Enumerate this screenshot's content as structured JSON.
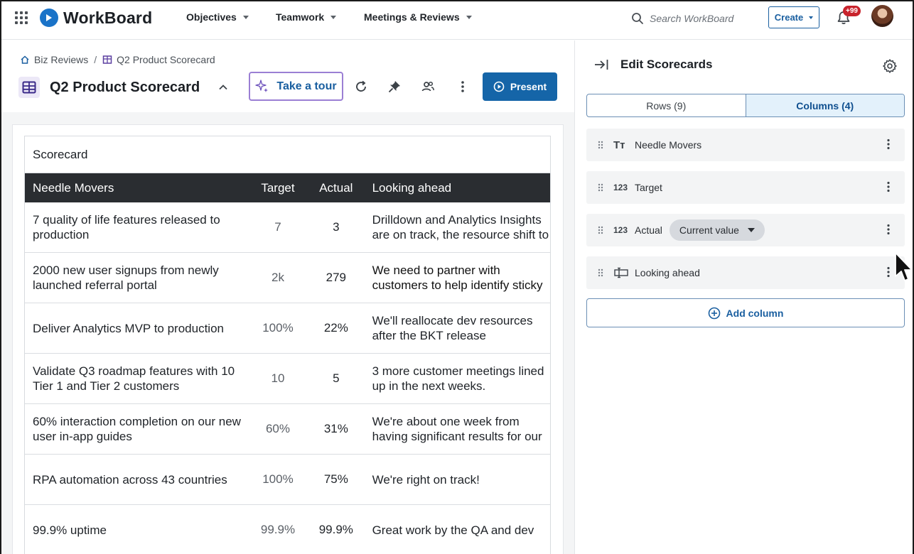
{
  "app": {
    "brand": "WorkBoard",
    "nav": [
      "Objectives",
      "Teamwork",
      "Meetings & Reviews"
    ],
    "search_placeholder": "Search WorkBoard",
    "create_label": "Create",
    "notification_count": "+99"
  },
  "breadcrumb": [
    "Biz Reviews",
    "Q2 Product Scorecard"
  ],
  "header": {
    "title": "Q2 Product Scorecard",
    "tour_label": "Take a tour",
    "present_label": "Present"
  },
  "scorecard": {
    "title": "Scorecard",
    "columns": [
      "Needle Movers",
      "Target",
      "Actual",
      "Looking ahead"
    ],
    "rows": [
      {
        "mover": "7 quality of life features released to production",
        "target": "7",
        "actual": "3",
        "ahead": "Drilldown and Analytics Insights are on track, the resource shift to BKT… ho"
      },
      {
        "mover": "2000 new user signups from newly launched referral portal",
        "target": "2k",
        "actual": "279",
        "ahead": "We need to partner with customers to help identify sticky points in the"
      },
      {
        "mover": "Deliver Analytics MVP to production",
        "target": "100%",
        "actual": "22%",
        "ahead": "We'll reallocate dev resources after the BKT release"
      },
      {
        "mover": "Validate Q3 roadmap features with 10 Tier 1 and Tier 2 customers",
        "target": "10",
        "actual": "5",
        "ahead": "3 more customer meetings lined up in the next weeks."
      },
      {
        "mover": "60% interaction completion on our new user in-app guides",
        "target": "60%",
        "actual": "31%",
        "ahead": "We're about one week from having significant results for our A/B"
      },
      {
        "mover": "RPA automation across 43 countries",
        "target": "100%",
        "actual": "75%",
        "ahead": "We're right on track!"
      },
      {
        "mover": "99.9% uptime",
        "target": "99.9%",
        "actual": "99.9%",
        "ahead": "Great work by the QA and dev"
      }
    ]
  },
  "panel": {
    "title": "Edit Scorecards",
    "tabs": [
      "Rows (9)",
      "Columns (4)"
    ],
    "columns": [
      {
        "type_icon": "text-type-icon",
        "type_label": "Tт",
        "name": "Needle Movers"
      },
      {
        "type_icon": "number-type-icon",
        "type_label": "123",
        "name": "Target"
      },
      {
        "type_icon": "number-type-icon",
        "type_label": "123",
        "name": "Actual",
        "option": "Current value"
      },
      {
        "type_icon": "long-text-type-icon",
        "type_label": "",
        "name": "Looking ahead"
      }
    ],
    "add_column_label": "Add column"
  },
  "colors": {
    "accent": "#1565a8",
    "tour_border": "#9b7fd4",
    "header_dark": "#2a2d31",
    "badge": "#c8232c"
  }
}
